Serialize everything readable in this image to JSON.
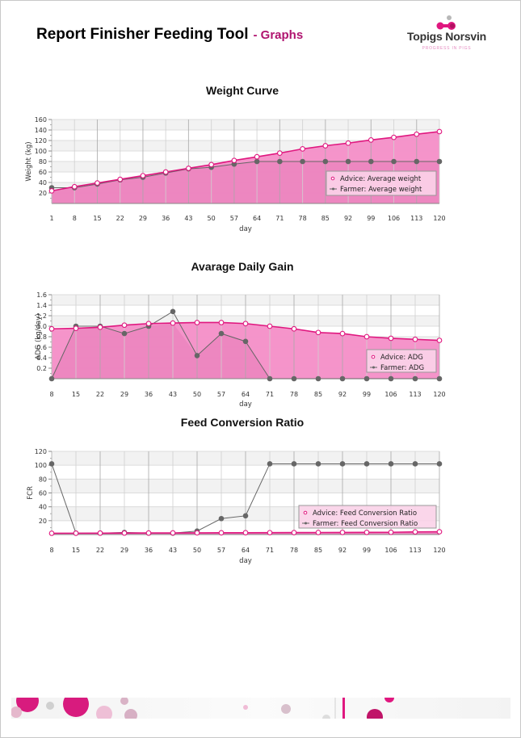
{
  "header": {
    "title": "Report Finisher Feeding Tool",
    "subtitle": "- Graphs",
    "logo_name": "Topigs Norsvin",
    "logo_tagline": "PROGRESS IN PIGS"
  },
  "colors": {
    "advice": "#e0177f",
    "advice_fill": "#f48ec7",
    "farmer": "#666666",
    "subtitle": "#b0136f"
  },
  "chart_data": [
    {
      "type": "area",
      "title": "Weight Curve",
      "xlabel": "day",
      "ylabel": "Weight  (kg)",
      "ylim": [
        0,
        160
      ],
      "yticks": [
        20,
        40,
        60,
        80,
        100,
        120,
        140,
        160
      ],
      "ytick_labels": [
        "20",
        "40",
        "60",
        "80",
        "100",
        "120",
        "140",
        "160"
      ],
      "categories": [
        "1",
        "8",
        "15",
        "22",
        "29",
        "36",
        "43",
        "50",
        "57",
        "64",
        "71",
        "78",
        "85",
        "92",
        "99",
        "106",
        "113",
        "120"
      ],
      "grid": true,
      "legend_position": "bottom-right",
      "series": [
        {
          "name": "Advice: Average weight",
          "values": [
            24,
            32,
            39,
            46,
            53,
            60,
            67,
            74,
            82,
            89,
            96,
            104,
            110,
            115,
            121,
            126,
            132,
            137
          ]
        },
        {
          "name": "Farmer: Average weight",
          "values": [
            30,
            30,
            37,
            45,
            50,
            58,
            66,
            69,
            75,
            80,
            80,
            80,
            80,
            80,
            80,
            80,
            80,
            80
          ]
        }
      ]
    },
    {
      "type": "area",
      "title": "Avarage Daily Gain",
      "xlabel": "day",
      "ylabel": "ADG (kg/day)",
      "ylim": [
        0,
        1.6
      ],
      "yticks": [
        0.2,
        0.4,
        0.6,
        0.8,
        1.0,
        1.2,
        1.4,
        1.6
      ],
      "ytick_labels": [
        "0.2",
        "0.4",
        "0.6",
        "0.8",
        "1.0",
        "1.2",
        "1.4",
        "1.6"
      ],
      "categories": [
        "8",
        "15",
        "22",
        "29",
        "36",
        "43",
        "50",
        "57",
        "64",
        "71",
        "78",
        "85",
        "92",
        "99",
        "106",
        "113",
        "120"
      ],
      "grid": true,
      "legend_position": "bottom-right",
      "series": [
        {
          "name": "Advice: ADG",
          "values": [
            0.95,
            0.96,
            0.98,
            1.02,
            1.05,
            1.06,
            1.07,
            1.07,
            1.05,
            1.0,
            0.95,
            0.88,
            0.86,
            0.8,
            0.77,
            0.75,
            0.73
          ]
        },
        {
          "name": "Farmer: ADG",
          "values": [
            0.0,
            1.0,
            1.0,
            0.86,
            1.0,
            1.28,
            0.44,
            0.86,
            0.71,
            0.0,
            0.0,
            0.0,
            0.0,
            0.0,
            0.0,
            0.0,
            0.0
          ]
        }
      ]
    },
    {
      "type": "line",
      "title": "Feed Conversion Ratio",
      "xlabel": "day",
      "ylabel": "FCR",
      "ylim": [
        0,
        120
      ],
      "yticks": [
        20,
        40,
        60,
        80,
        100,
        120
      ],
      "ytick_labels": [
        "20",
        "40",
        "60",
        "80",
        "100",
        "120"
      ],
      "categories": [
        "8",
        "15",
        "22",
        "29",
        "36",
        "43",
        "50",
        "57",
        "64",
        "71",
        "78",
        "85",
        "92",
        "99",
        "106",
        "113",
        "120"
      ],
      "grid": true,
      "legend_position": "right",
      "series": [
        {
          "name": "Advice: Feed Conversion Ratio",
          "values": [
            1.8,
            1.9,
            2.0,
            2.1,
            2.2,
            2.3,
            2.4,
            2.5,
            2.6,
            2.7,
            2.8,
            2.9,
            3.0,
            3.1,
            3.2,
            3.8,
            4.0
          ]
        },
        {
          "name": "Farmer: Feed Conversion Ratio",
          "values": [
            102,
            2,
            2,
            3,
            2,
            2,
            5,
            23,
            27,
            102,
            102,
            102,
            102,
            102,
            102,
            102,
            102
          ]
        }
      ]
    }
  ]
}
